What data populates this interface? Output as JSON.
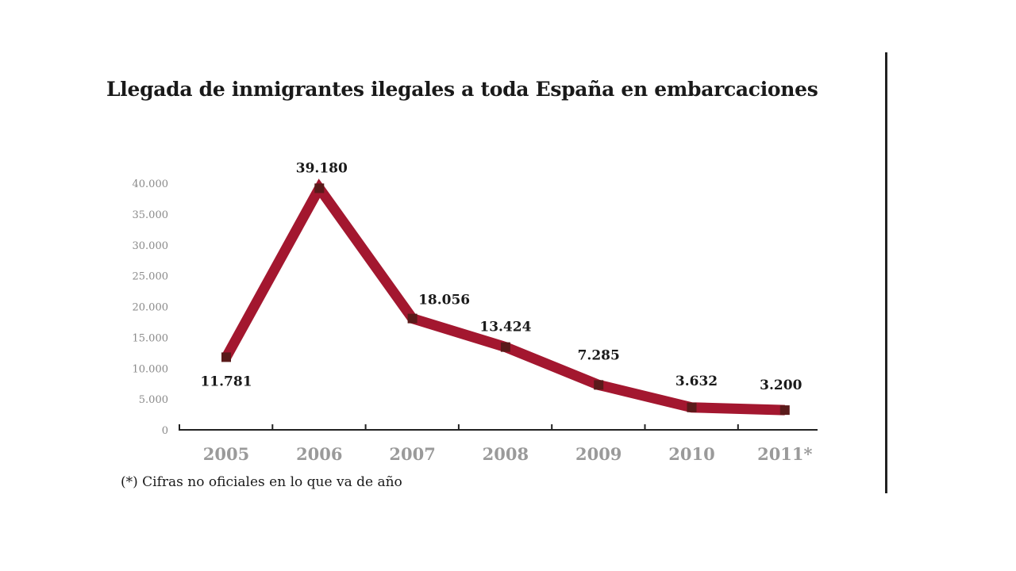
{
  "chart_data": {
    "type": "line",
    "title": "Llegada de inmigrantes ilegales a toda España en embarcaciones",
    "footnote": "(*) Cifras no oficiales en lo que va de año",
    "categories": [
      "2005",
      "2006",
      "2007",
      "2008",
      "2009",
      "2010",
      "2011*"
    ],
    "values": [
      11781,
      39180,
      18056,
      13424,
      7285,
      3632,
      3200
    ],
    "data_labels": [
      "11.781",
      "39.180",
      "18.056",
      "13.424",
      "7.285",
      "3.632",
      "3.200"
    ],
    "yticks": [
      0,
      5000,
      10000,
      15000,
      20000,
      25000,
      30000,
      35000,
      40000
    ],
    "ytick_labels": [
      "0",
      "5.000",
      "10.000",
      "15.000",
      "20.000",
      "25.000",
      "30.000",
      "35.000",
      "40.000"
    ],
    "ylim": [
      0,
      40000
    ],
    "xlabel": "",
    "ylabel": "",
    "grid": false,
    "legend": "none",
    "colors": {
      "line": "#a3172f",
      "marker": "#5a1a1a",
      "axis": "#222222"
    }
  }
}
